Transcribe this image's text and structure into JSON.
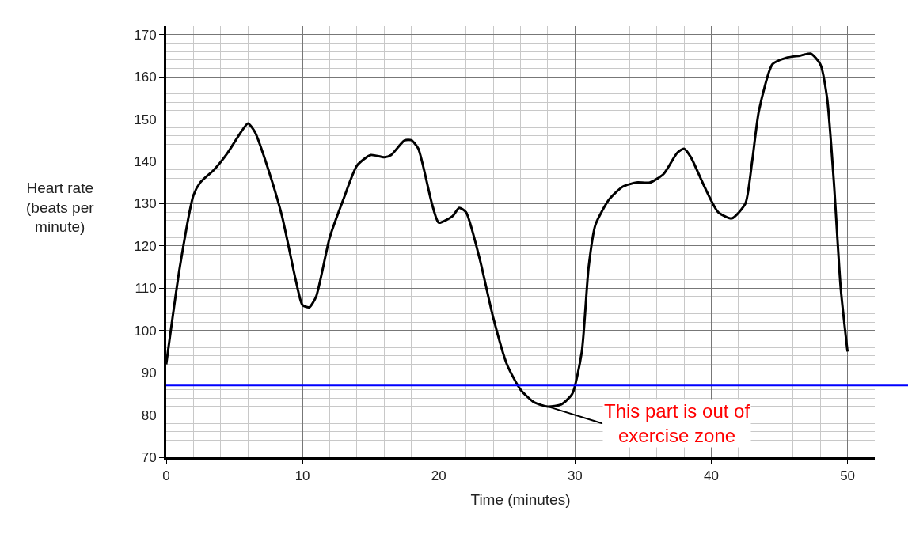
{
  "chart_data": {
    "type": "line",
    "xlabel": "Time (minutes)",
    "ylabel": "Heart rate\n(beats per\nminute)",
    "xlim": [
      0,
      52
    ],
    "ylim": [
      70,
      172
    ],
    "xticks": [
      0,
      10,
      20,
      30,
      40,
      50
    ],
    "yticks": [
      70,
      80,
      90,
      100,
      110,
      120,
      130,
      140,
      150,
      160,
      170
    ],
    "grid": true,
    "marker": "none",
    "line_style": "solid",
    "series": [
      {
        "color": "#000000",
        "x": [
          0,
          1,
          2,
          2.5,
          3.5,
          4.5,
          5.5,
          6,
          6.5,
          7.5,
          8.5,
          9.5,
          10,
          10.5,
          11,
          12,
          13,
          14,
          15,
          16,
          16.5,
          17.5,
          18,
          18.5,
          19.5,
          20,
          21,
          21.5,
          22,
          23,
          24,
          25,
          26,
          27,
          28,
          29,
          29.8,
          30.5,
          31,
          31.5,
          32.5,
          33.5,
          34.5,
          35.5,
          36.5,
          37.5,
          38,
          38.5,
          39.5,
          40.5,
          41.5,
          42.5,
          43,
          43.5,
          44.5,
          45.5,
          46.5,
          47.3,
          48,
          48.5,
          49,
          49.5,
          50
        ],
        "values": [
          92,
          115,
          132,
          135,
          138,
          142,
          147,
          149,
          147,
          138,
          127,
          112,
          106,
          105.5,
          108,
          122,
          131,
          139,
          141.5,
          141,
          141.5,
          145,
          145,
          143,
          130,
          125.5,
          127,
          129,
          128,
          117,
          103,
          92,
          86,
          83,
          82,
          82.5,
          85,
          95,
          115,
          125,
          131,
          134,
          135,
          135,
          137,
          142,
          143,
          141,
          134,
          128,
          126.5,
          130,
          140,
          152,
          163,
          164.5,
          165,
          165.5,
          163,
          155,
          135,
          110,
          95
        ]
      }
    ],
    "ref_lines": [
      {
        "axis": "y",
        "value": 87,
        "color": "#0000ff",
        "line_style": "solid"
      }
    ],
    "annotations": [
      {
        "text": "This part is out of\nexercise zone",
        "x": 28,
        "y": 82
      }
    ]
  }
}
